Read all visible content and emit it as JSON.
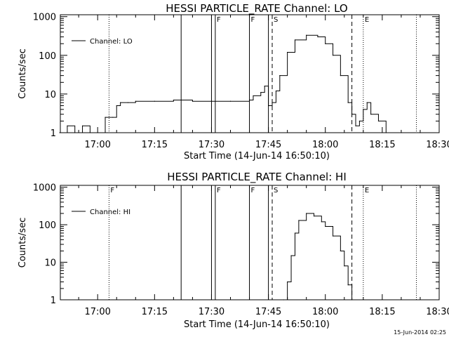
{
  "chart_data": [
    {
      "type": "line",
      "title": "HESSI PARTICLE_RATE Channel: LO",
      "xlabel": "Start Time (14-Jun-14 16:50:10)",
      "ylabel": "Counts/sec",
      "yscale": "log",
      "ylim": [
        1,
        1000
      ],
      "xlim": [
        "16:50:10",
        "18:30:00"
      ],
      "x_ticks": [
        "17:00",
        "17:15",
        "17:30",
        "17:45",
        "18:00",
        "18:15",
        "18:30"
      ],
      "y_ticks": [
        "1",
        "10",
        "100",
        "1000"
      ],
      "grid": false,
      "legend": {
        "placement": "top-left",
        "entries": [
          "Channel: LO"
        ]
      },
      "series": [
        {
          "name": "Channel: LO",
          "x": [
            "16:50",
            "16:52",
            "16:54",
            "16:56",
            "16:58",
            "17:00",
            "17:02",
            "17:04",
            "17:05",
            "17:06",
            "17:08",
            "17:10",
            "17:15",
            "17:20",
            "17:25",
            "17:30",
            "17:35",
            "17:40",
            "17:41",
            "17:43",
            "17:44",
            "17:45",
            "17:46",
            "17:47",
            "17:48",
            "17:50",
            "17:52",
            "17:55",
            "17:58",
            "18:00",
            "18:02",
            "18:04",
            "18:06",
            "18:07",
            "18:08",
            "18:09",
            "18:10",
            "18:11",
            "18:12",
            "18:14",
            "18:16",
            "18:20",
            "18:25"
          ],
          "y": [
            1,
            1.5,
            1,
            1.5,
            1,
            1,
            2.5,
            2.5,
            5,
            6,
            6,
            6.5,
            6.5,
            7,
            6.5,
            6.5,
            6.5,
            7,
            9,
            11,
            16,
            5,
            6,
            12,
            30,
            120,
            250,
            330,
            300,
            200,
            100,
            30,
            6,
            3,
            1.5,
            2,
            4,
            6,
            3,
            2,
            1,
            1,
            1
          ]
        }
      ],
      "events": [
        {
          "label": "",
          "time": "17:03",
          "style": "dotted"
        },
        {
          "label": "",
          "time": "17:22",
          "style": "solid"
        },
        {
          "label": "",
          "time": "17:30",
          "style": "solid"
        },
        {
          "label": "F",
          "time": "17:31",
          "style": "solid"
        },
        {
          "label": "F",
          "time": "17:40",
          "style": "solid"
        },
        {
          "label": "",
          "time": "17:45",
          "style": "solid"
        },
        {
          "label": "S",
          "time": "17:46",
          "style": "dashed"
        },
        {
          "label": "",
          "time": "18:07",
          "style": "dashed"
        },
        {
          "label": "E",
          "time": "18:10",
          "style": "dotted"
        },
        {
          "label": "",
          "time": "18:24",
          "style": "dotted"
        }
      ]
    },
    {
      "type": "line",
      "title": "HESSI PARTICLE_RATE Channel: HI",
      "xlabel": "Start Time (14-Jun-14 16:50:10)",
      "ylabel": "Counts/sec",
      "yscale": "log",
      "ylim": [
        1,
        1000
      ],
      "xlim": [
        "16:50:10",
        "18:30:00"
      ],
      "x_ticks": [
        "17:00",
        "17:15",
        "17:30",
        "17:45",
        "18:00",
        "18:15",
        "18:30"
      ],
      "y_ticks": [
        "1",
        "10",
        "100",
        "1000"
      ],
      "grid": false,
      "legend": {
        "placement": "top-left",
        "entries": [
          "Channel: HI"
        ]
      },
      "series": [
        {
          "name": "Channel: HI",
          "x": [
            "17:49",
            "17:50",
            "17:51",
            "17:52",
            "17:53",
            "17:55",
            "17:57",
            "17:59",
            "18:00",
            "18:02",
            "18:04",
            "18:05",
            "18:06",
            "18:07"
          ],
          "y": [
            1,
            3,
            15,
            60,
            130,
            200,
            170,
            120,
            90,
            50,
            20,
            8,
            2.5,
            1
          ]
        }
      ],
      "events": [
        {
          "label": "F",
          "time": "17:03",
          "style": "dotted"
        },
        {
          "label": "",
          "time": "17:22",
          "style": "solid"
        },
        {
          "label": "",
          "time": "17:30",
          "style": "solid"
        },
        {
          "label": "F",
          "time": "17:31",
          "style": "solid"
        },
        {
          "label": "F",
          "time": "17:40",
          "style": "solid"
        },
        {
          "label": "",
          "time": "17:45",
          "style": "solid"
        },
        {
          "label": "S",
          "time": "17:46",
          "style": "dashed"
        },
        {
          "label": "",
          "time": "18:07",
          "style": "dashed"
        },
        {
          "label": "E",
          "time": "18:10",
          "style": "dotted"
        },
        {
          "label": "",
          "time": "18:24",
          "style": "dotted"
        }
      ]
    }
  ],
  "footer": {
    "timestamp": "15-Jun-2014 02:25"
  }
}
